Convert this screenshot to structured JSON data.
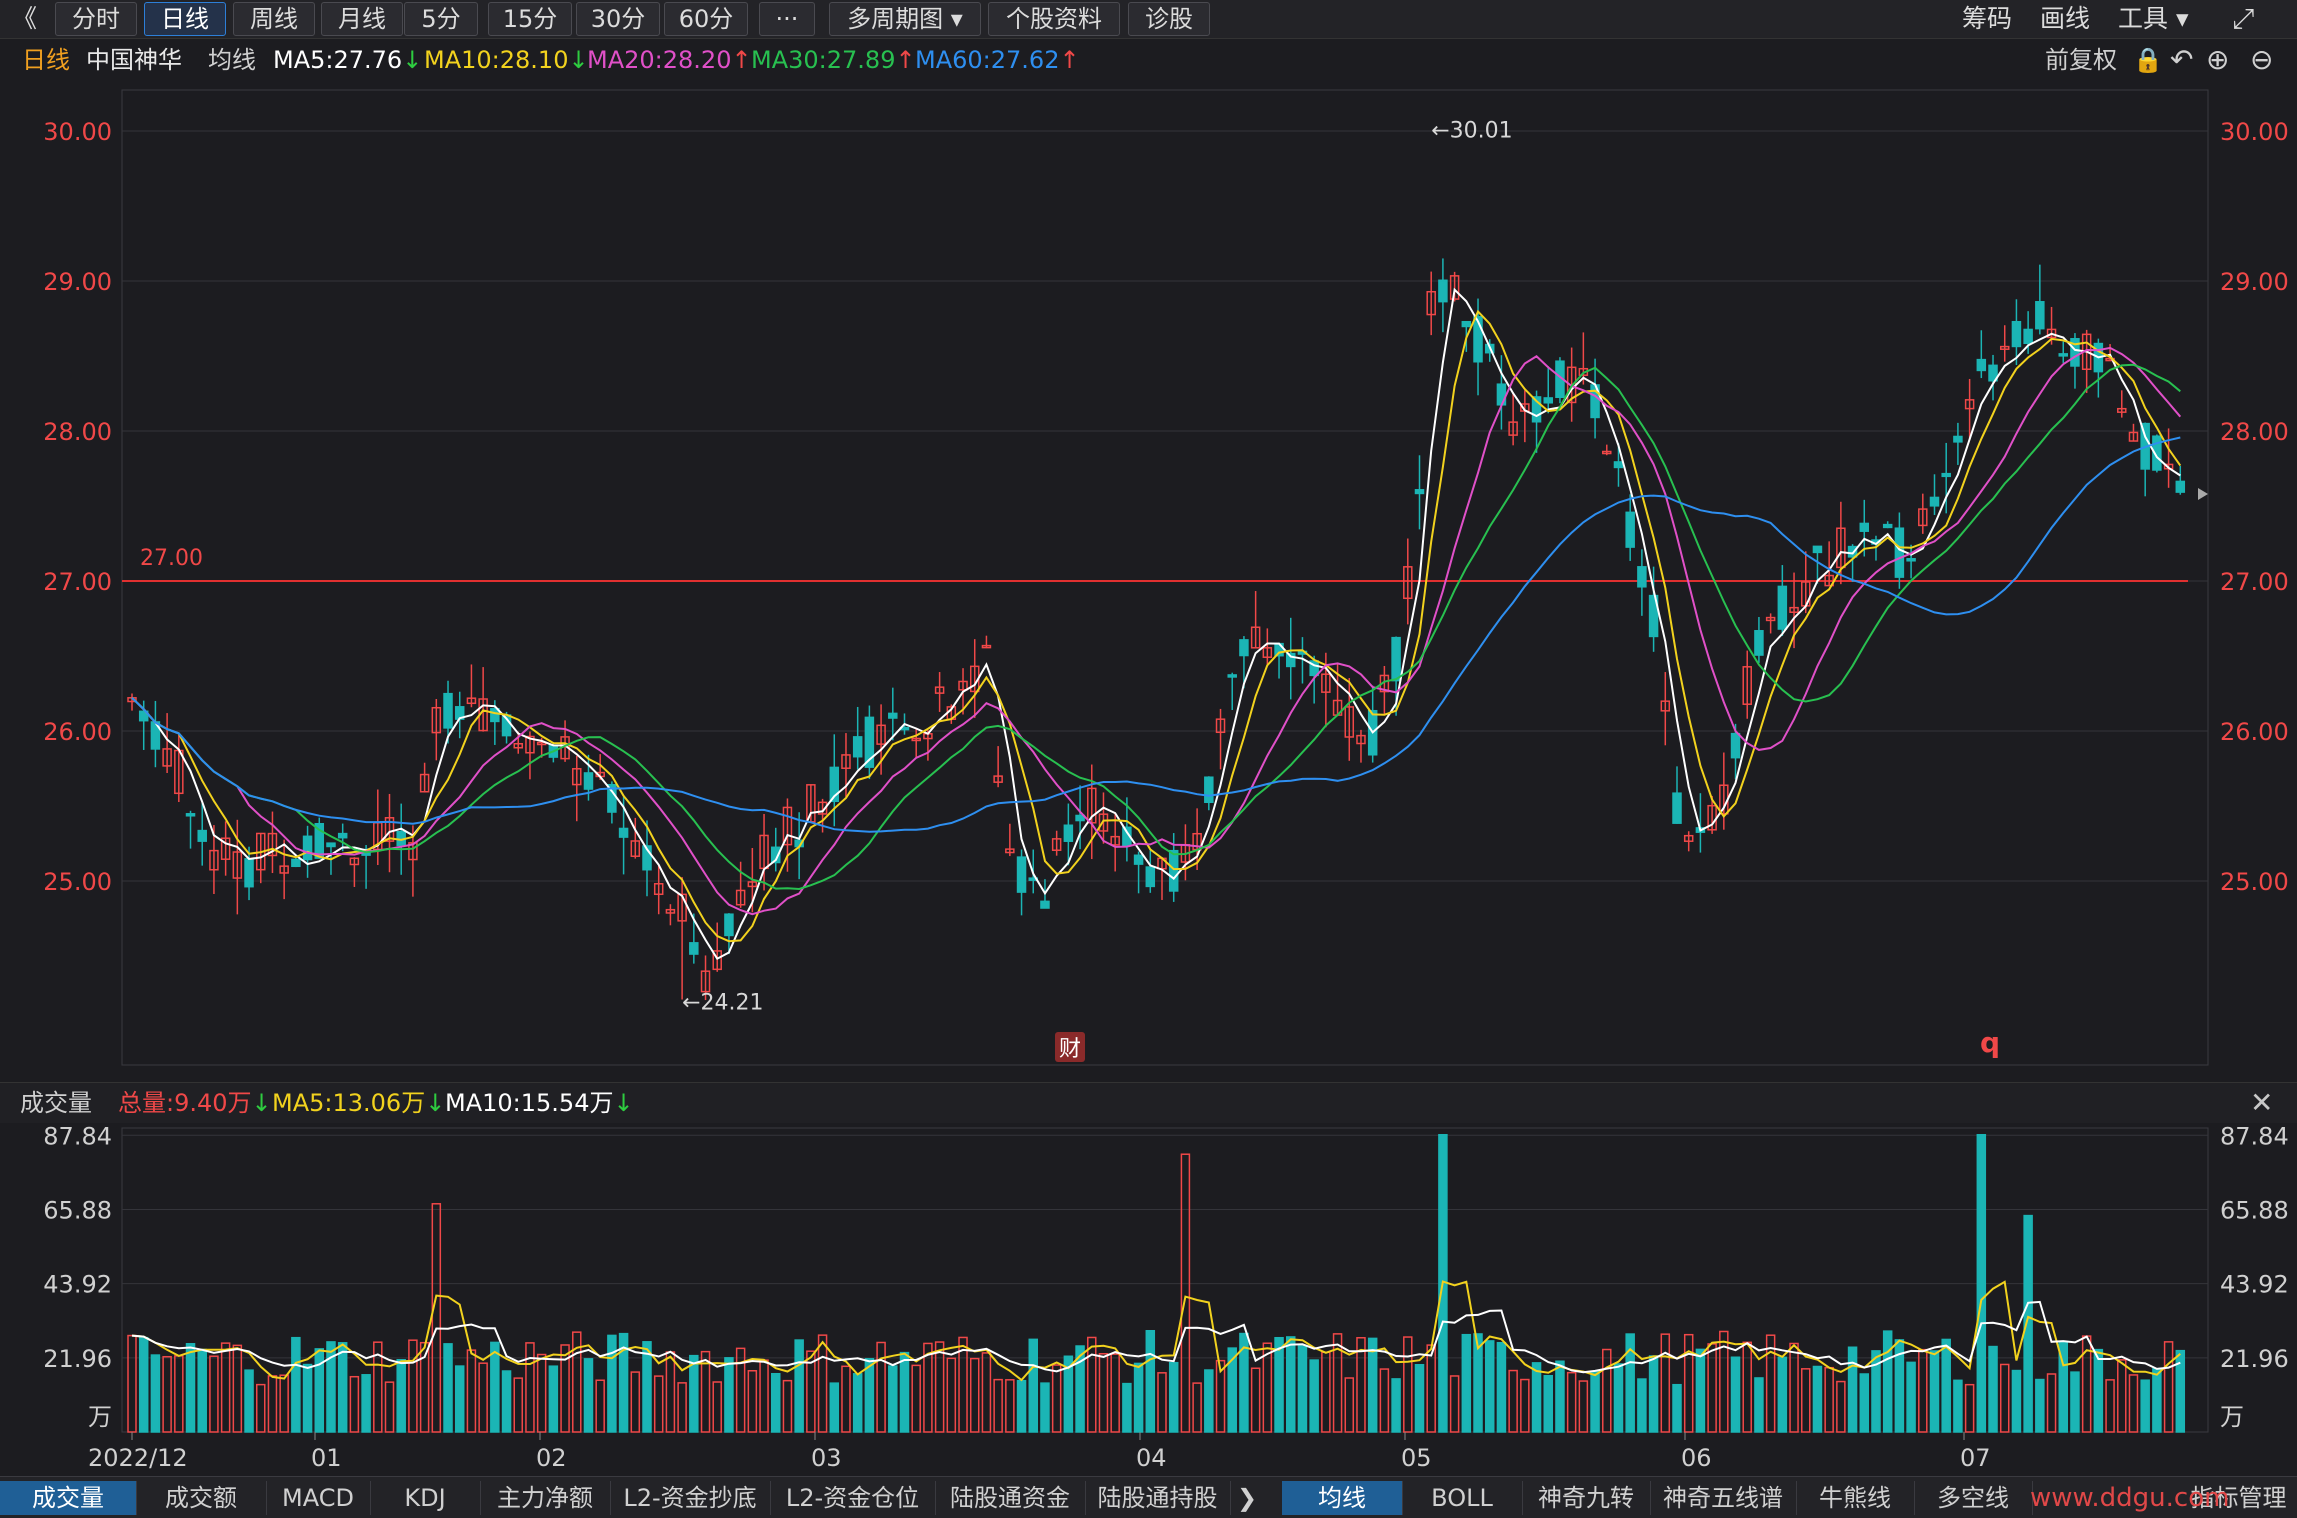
{
  "toolbar": {
    "back": "《",
    "buttons": [
      "分时",
      "日线",
      "周线",
      "月线",
      "5分",
      "15分",
      "30分",
      "60分",
      "···",
      "多周期图 ▾",
      "个股资料",
      "诊股"
    ],
    "active": "日线",
    "right": [
      "筹码",
      "画线",
      "工具 ▾"
    ],
    "fullscreen": "⤢"
  },
  "legend": {
    "period": "日线",
    "stock": "中国神华",
    "ma_label": "均线",
    "ma5": "MA5:27.76",
    "ma10": "MA10:28.10",
    "ma20": "MA20:28.20",
    "ma30": "MA30:27.89",
    "ma60": "MA60:27.62",
    "adjust": "前复权",
    "colors": {
      "ma5": "#ffffff",
      "ma10": "#f2d21e",
      "ma20": "#e050c8",
      "ma30": "#28c050",
      "ma60": "#2e8ff0",
      "up": "#f04848",
      "down": "#1bb5b5"
    }
  },
  "price_axis": {
    "labels": [
      "30.00",
      "29.00",
      "28.00",
      "27.00",
      "26.00",
      "25.00"
    ],
    "values": [
      30,
      29,
      28,
      27,
      26,
      25
    ]
  },
  "annotations": {
    "high": "←30.01",
    "low": "←24.21",
    "line_label": "27.00",
    "finance_marker": "财",
    "q_marker": "q"
  },
  "volume_legend": {
    "title": "成交量",
    "total": "总量:9.40万",
    "ma5": "MA5:13.06万",
    "ma10": "MA10:15.54万",
    "close": "✕"
  },
  "volume_axis": {
    "labels": [
      "87.84",
      "65.88",
      "43.92",
      "21.96"
    ],
    "values": [
      87.84,
      65.88,
      43.92,
      21.96
    ],
    "unit": "万"
  },
  "date_axis": [
    "2022/12",
    "01",
    "02",
    "03",
    "04",
    "05",
    "06",
    "07"
  ],
  "bottom_tabs_left": [
    "成交量",
    "成交额",
    "MACD",
    "KDJ",
    "主力净额",
    "L2-资金抄底",
    "L2-资金仓位",
    "陆股通资金",
    "陆股通持股"
  ],
  "bottom_tabs_right": [
    "均线",
    "BOLL",
    "神奇九转",
    "神奇五线谱",
    "牛熊线",
    "多空线",
    "指标管理"
  ],
  "more_arrow": "❯",
  "watermark": "www.ddgu.com",
  "chart_data": {
    "type": "candlestick",
    "price_range": [
      24.0,
      30.2
    ],
    "volume_range": [
      0,
      90
    ],
    "ma_periods": [
      5,
      10,
      20,
      30,
      60
    ],
    "high_marker": 30.01,
    "low_marker": 24.21,
    "horizontal_line": 27.0
  }
}
